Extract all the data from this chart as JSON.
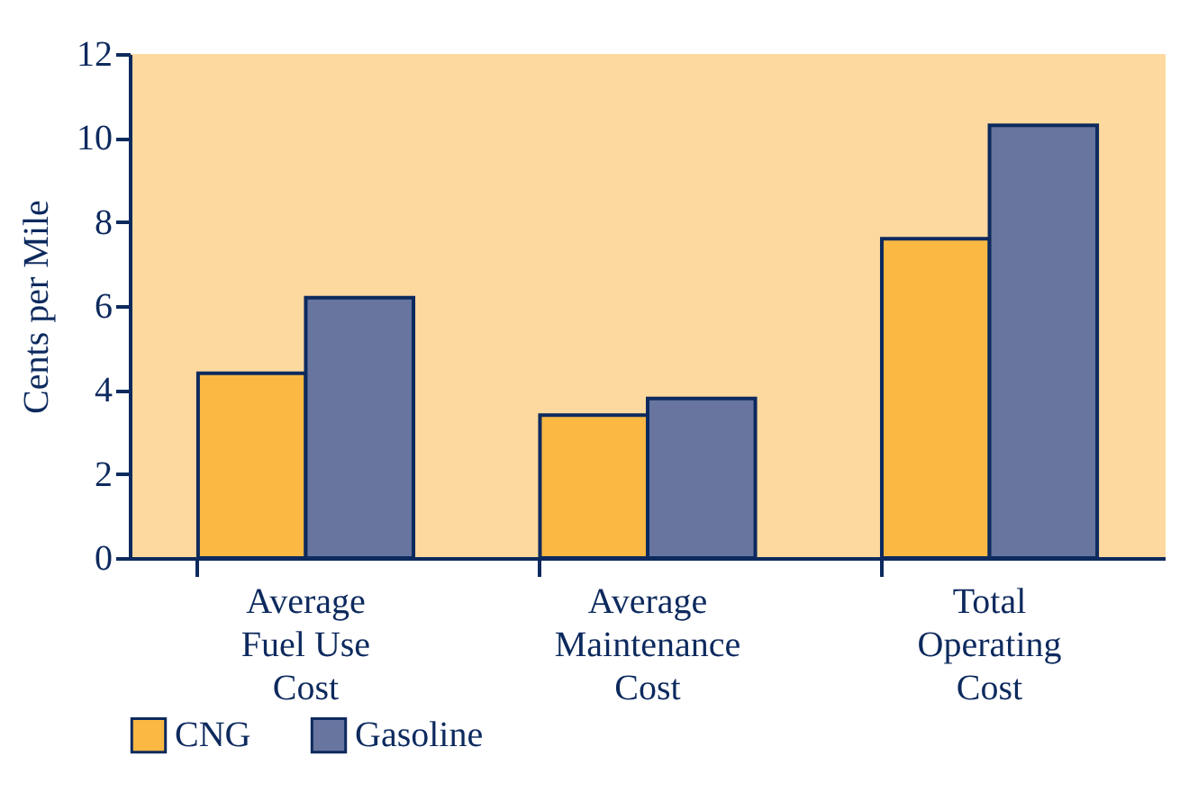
{
  "chart_data": {
    "type": "bar",
    "ylabel": "Cents per Mile",
    "categories": [
      "Average\nFuel Use\nCost",
      "Average\nMaintenance\nCost",
      "Total\nOperating\nCost"
    ],
    "series": [
      {
        "name": "CNG",
        "color": "#fbb944",
        "values": [
          4.4,
          3.4,
          7.6
        ]
      },
      {
        "name": "Gasoline",
        "color": "#67759f",
        "values": [
          6.2,
          3.8,
          10.3
        ]
      }
    ],
    "ylim": [
      0,
      12
    ],
    "yticks": [
      0,
      2,
      4,
      6,
      8,
      10,
      12
    ],
    "grid": false,
    "legend": "bottom"
  }
}
